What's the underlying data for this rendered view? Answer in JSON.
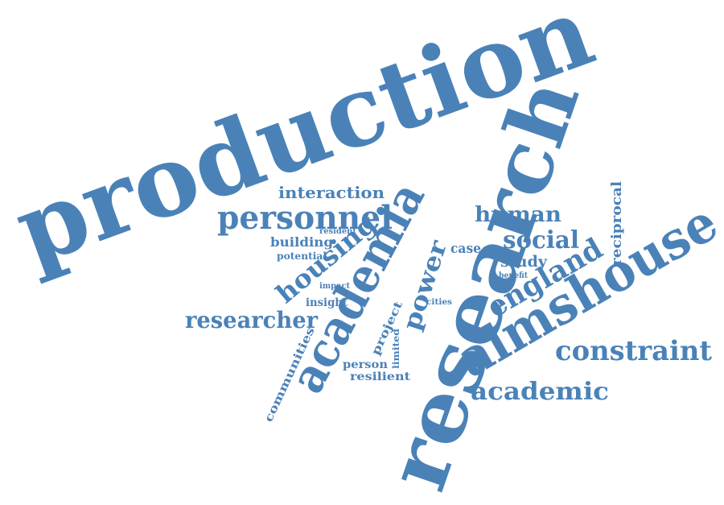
{
  "cloud": {
    "color": "#4a82b8",
    "words": {
      "production": "production",
      "research": "research",
      "almshouse": "almshouse",
      "academia": "academia",
      "personnel": "personnel",
      "interaction": "interaction",
      "human": "human",
      "social": "social",
      "study": "study",
      "case": "case",
      "benefit": "benefit",
      "england": "england",
      "reciprocal": "reciprocal",
      "constraint": "constraint",
      "academic": "academic",
      "power": "power",
      "housing": "housing",
      "researcher": "researcher",
      "insight": "insight",
      "impact": "impact",
      "building": "building",
      "resident": "resident",
      "potential": "potential",
      "communities": "communities",
      "project": "project",
      "limited": "limited",
      "cities": "cities",
      "person": "person",
      "resilient": "resilient"
    }
  }
}
